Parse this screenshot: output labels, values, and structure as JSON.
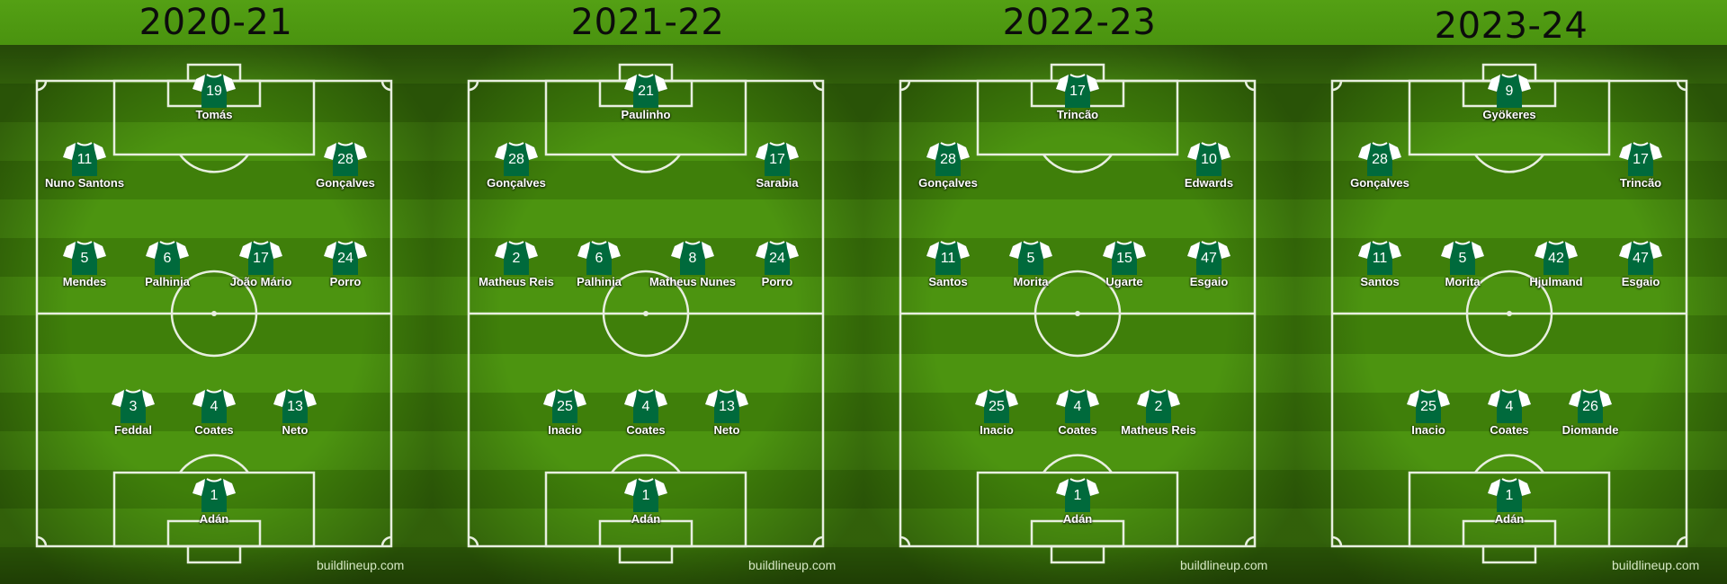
{
  "colors": {
    "pitch_light": "#4c9410",
    "pitch_dark": "#3f7f0a",
    "shirt_body": "#006a3c",
    "shirt_sleeve": "#ffffff",
    "line": "#e8efe0"
  },
  "watermark": "buildlineup.com",
  "lineups": [
    {
      "season": "2020-21",
      "players": [
        {
          "number": "19",
          "name": "Tomás"
        },
        {
          "number": "11",
          "name": "Nuno Santons"
        },
        {
          "number": "28",
          "name": "Gonçalves"
        },
        {
          "number": "5",
          "name": "Mendes"
        },
        {
          "number": "6",
          "name": "Palhinia"
        },
        {
          "number": "17",
          "name": "João Mário"
        },
        {
          "number": "24",
          "name": "Porro"
        },
        {
          "number": "3",
          "name": "Feddal"
        },
        {
          "number": "4",
          "name": "Coates"
        },
        {
          "number": "13",
          "name": "Neto"
        },
        {
          "number": "1",
          "name": "Adán"
        }
      ]
    },
    {
      "season": "2021-22",
      "players": [
        {
          "number": "21",
          "name": "Paulinho"
        },
        {
          "number": "28",
          "name": "Gonçalves"
        },
        {
          "number": "17",
          "name": "Sarabia"
        },
        {
          "number": "2",
          "name": "Matheus Reis"
        },
        {
          "number": "6",
          "name": "Palhinia"
        },
        {
          "number": "8",
          "name": "Matheus Nunes"
        },
        {
          "number": "24",
          "name": "Porro"
        },
        {
          "number": "25",
          "name": "Inacio"
        },
        {
          "number": "4",
          "name": "Coates"
        },
        {
          "number": "13",
          "name": "Neto"
        },
        {
          "number": "1",
          "name": "Adán"
        }
      ]
    },
    {
      "season": "2022-23",
      "players": [
        {
          "number": "17",
          "name": "Trincão"
        },
        {
          "number": "28",
          "name": "Gonçalves"
        },
        {
          "number": "10",
          "name": "Edwards"
        },
        {
          "number": "11",
          "name": "Santos"
        },
        {
          "number": "5",
          "name": "Morita"
        },
        {
          "number": "15",
          "name": "Ugarte"
        },
        {
          "number": "47",
          "name": "Esgaio"
        },
        {
          "number": "25",
          "name": "Inacio"
        },
        {
          "number": "4",
          "name": "Coates"
        },
        {
          "number": "2",
          "name": "Matheus Reis"
        },
        {
          "number": "1",
          "name": "Adán"
        }
      ]
    },
    {
      "season": "2023-24",
      "players": [
        {
          "number": "9",
          "name": "Gyökeres"
        },
        {
          "number": "28",
          "name": "Gonçalves"
        },
        {
          "number": "17",
          "name": "Trincão"
        },
        {
          "number": "11",
          "name": "Santos"
        },
        {
          "number": "5",
          "name": "Morita"
        },
        {
          "number": "42",
          "name": "Hjulmand"
        },
        {
          "number": "47",
          "name": "Esgaio"
        },
        {
          "number": "25",
          "name": "Inacio"
        },
        {
          "number": "4",
          "name": "Coates"
        },
        {
          "number": "26",
          "name": "Diomande"
        },
        {
          "number": "1",
          "name": "Adán"
        }
      ]
    }
  ]
}
